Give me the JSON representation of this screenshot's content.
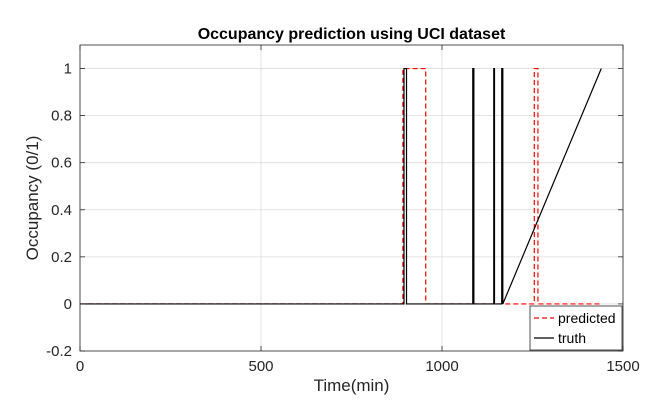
{
  "chart_data": {
    "type": "line",
    "title": "Occupancy prediction using UCI dataset",
    "xlabel": "Time(min)",
    "ylabel": "Occupancy (0/1)",
    "xlim": [
      0,
      1500
    ],
    "ylim": [
      -0.2,
      1.1
    ],
    "xticks": [
      0,
      500,
      1000,
      1500
    ],
    "yticks": [
      -0.2,
      0,
      0.2,
      0.4,
      0.6,
      0.8,
      1
    ],
    "xtick_labels": [
      "0",
      "500",
      "1000",
      "1500"
    ],
    "ytick_labels": [
      "-0.2",
      "0",
      "0.2",
      "0.4",
      "0.6",
      "0.8",
      "1"
    ],
    "grid": true,
    "legend_location": "bottom-right",
    "series": [
      {
        "name": "predicted",
        "color": "#ff0000",
        "linestyle": "dashed",
        "x": [
          0,
          892,
          892,
          955,
          955,
          1255,
          1255,
          1265,
          1265,
          1440
        ],
        "y": [
          0,
          0,
          1,
          1,
          0,
          0,
          1,
          1,
          0,
          0
        ]
      },
      {
        "name": "truth",
        "color": "#000000",
        "linestyle": "solid",
        "x": [
          0,
          895,
          895,
          902,
          902,
          1085,
          1085,
          1088,
          1088,
          1143,
          1143,
          1145,
          1145,
          1165,
          1165,
          1168,
          1168,
          1440
        ],
        "y": [
          0,
          0,
          1,
          1,
          0,
          0,
          1,
          1,
          0,
          0,
          1,
          1,
          0,
          0,
          1,
          1,
          0,
          1
        ]
      }
    ]
  }
}
